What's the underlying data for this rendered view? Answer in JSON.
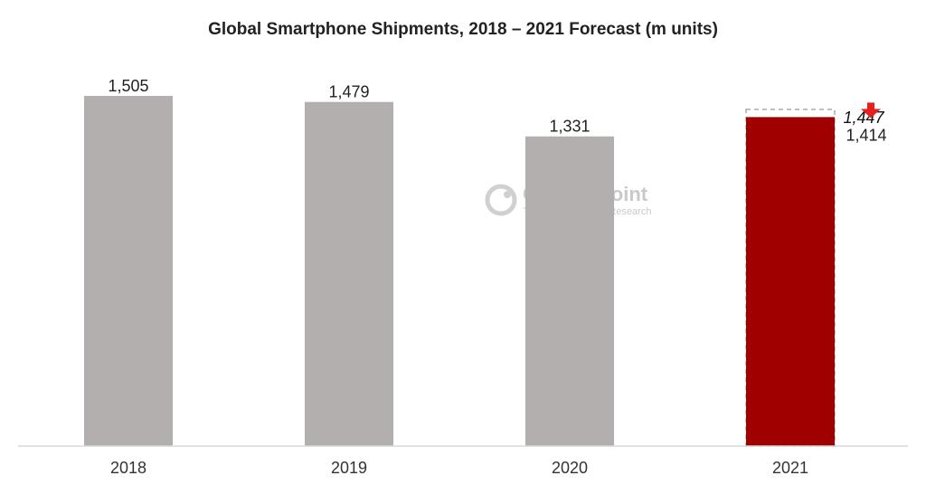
{
  "chart_data": {
    "type": "bar",
    "title": "Global Smartphone Shipments, 2018 – 2021 Forecast (m units)",
    "categories": [
      "2018",
      "2019",
      "2020",
      "2021"
    ],
    "values": [
      1505,
      1479,
      1331,
      1414
    ],
    "value_labels": [
      "1,505",
      "1,479",
      "1,331",
      "1,414"
    ],
    "previous_forecast": {
      "category": "2021",
      "value": 1447,
      "label": "1,447"
    },
    "ylim": [
      0,
      1505
    ],
    "grid": false,
    "colors": {
      "actual": "#b2afae",
      "forecast": "#a00000",
      "previous_outline": "#aaaaaa",
      "arrow": "#e8201c",
      "axis": "#d9d9d9"
    }
  },
  "watermark": {
    "name": "Counterpoint",
    "subtitle": "Technology Market Research",
    "icon": "counterpoint-logo-icon"
  }
}
